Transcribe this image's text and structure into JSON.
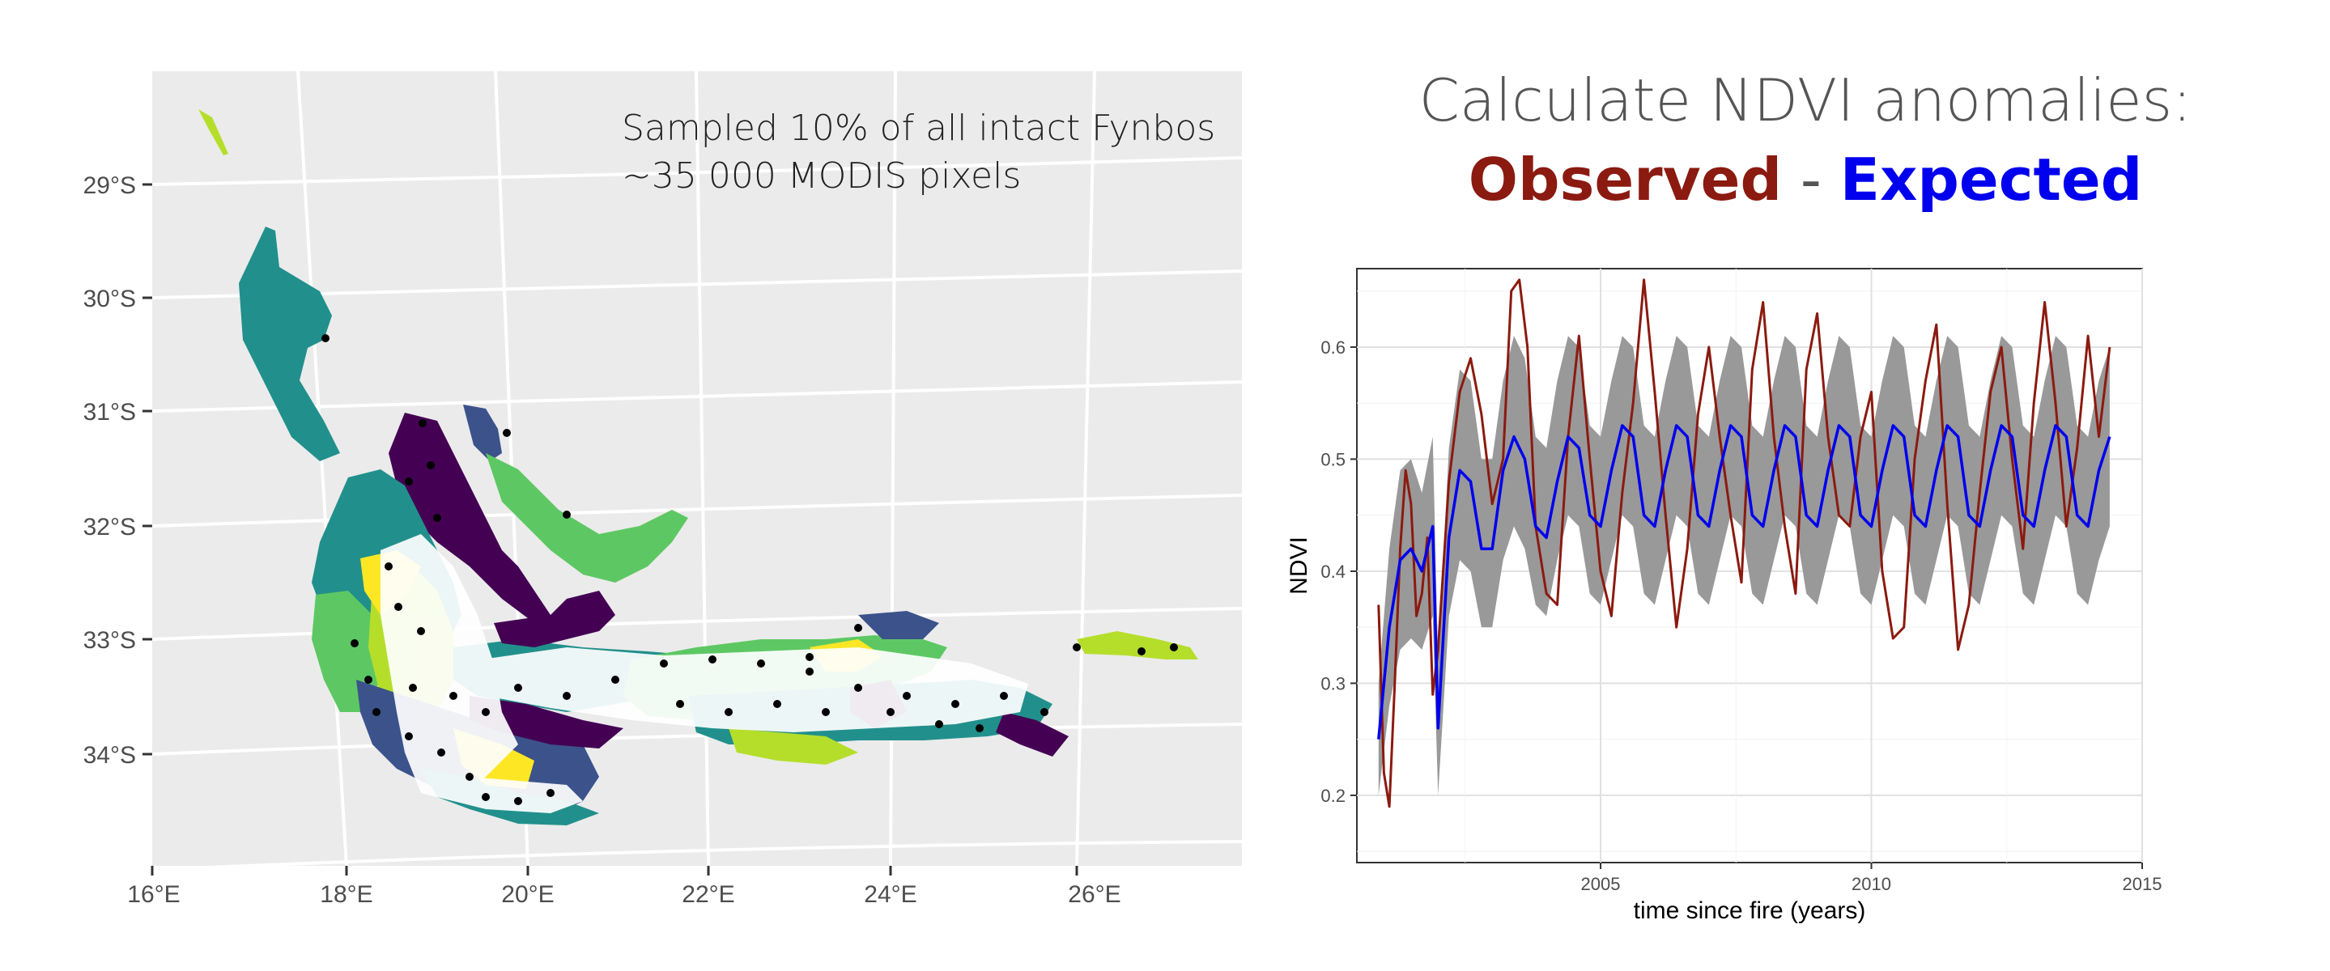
{
  "slide": {
    "title": "Calculate NDVI anomalies:",
    "observed_word": "Observed",
    "separator": " - ",
    "expected_word": "Expected",
    "observed_color": "#8b1a10",
    "expected_color": "#0000ee"
  },
  "map": {
    "annotation_line1": "Sampled 10% of all intact Fynbos",
    "annotation_line2": "~35 000 MODIS pixels",
    "lat_labels": [
      "29°S",
      "30°S",
      "31°S",
      "32°S",
      "33°S",
      "34°S"
    ],
    "lon_labels": [
      "16°E",
      "18°E",
      "20°E",
      "22°E",
      "24°E",
      "26°E"
    ],
    "panel_color": "#ebebeb",
    "palette": [
      "#440154",
      "#3b528b",
      "#21908c",
      "#5dc863",
      "#b5de2b",
      "#fde725"
    ]
  },
  "chart_data": {
    "type": "line",
    "xlabel": "time since fire (years)",
    "ylabel": "NDVI",
    "x_ticks": [
      "2005",
      "2010",
      "2015"
    ],
    "y_ticks": [
      "0.2",
      "0.3",
      "0.4",
      "0.5",
      "0.6"
    ],
    "xlim": [
      2000.5,
      2015
    ],
    "ylim": [
      0.14,
      0.67
    ],
    "grid": true,
    "series": [
      {
        "color": "#8b1a10",
        "x": [
          2000.9,
          2001.0,
          2001.1,
          2001.2,
          2001.3,
          2001.4,
          2001.5,
          2001.6,
          2001.7,
          2001.8,
          2001.9,
          2002.0,
          2002.2,
          2002.4,
          2002.6,
          2002.8,
          2003.0,
          2003.2,
          2003.35,
          2003.5,
          2003.65,
          2003.8,
          2004.0,
          2004.2,
          2004.4,
          2004.6,
          2004.8,
          2005.0,
          2005.2,
          2005.4,
          2005.6,
          2005.8,
          2006.0,
          2006.2,
          2006.4,
          2006.6,
          2006.8,
          2007.0,
          2007.2,
          2007.4,
          2007.6,
          2007.8,
          2008.0,
          2008.2,
          2008.4,
          2008.6,
          2008.8,
          2009.0,
          2009.2,
          2009.4,
          2009.6,
          2009.8,
          2010.0,
          2010.2,
          2010.4,
          2010.6,
          2010.8,
          2011.0,
          2011.2,
          2011.4,
          2011.6,
          2011.8,
          2012.0,
          2012.2,
          2012.4,
          2012.6,
          2012.8,
          2013.0,
          2013.2,
          2013.4,
          2013.6,
          2013.8,
          2014.0,
          2014.2,
          2014.4
        ],
        "y": [
          0.37,
          0.22,
          0.19,
          0.3,
          0.42,
          0.49,
          0.46,
          0.36,
          0.38,
          0.43,
          0.29,
          0.33,
          0.48,
          0.56,
          0.59,
          0.54,
          0.46,
          0.5,
          0.65,
          0.66,
          0.6,
          0.44,
          0.38,
          0.37,
          0.52,
          0.61,
          0.5,
          0.4,
          0.36,
          0.47,
          0.55,
          0.66,
          0.56,
          0.45,
          0.35,
          0.42,
          0.54,
          0.6,
          0.52,
          0.45,
          0.39,
          0.58,
          0.64,
          0.52,
          0.44,
          0.38,
          0.58,
          0.63,
          0.52,
          0.45,
          0.44,
          0.52,
          0.56,
          0.4,
          0.34,
          0.35,
          0.5,
          0.57,
          0.62,
          0.46,
          0.33,
          0.37,
          0.47,
          0.56,
          0.6,
          0.5,
          0.42,
          0.55,
          0.64,
          0.55,
          0.44,
          0.51,
          0.61,
          0.52,
          0.6
        ]
      },
      {
        "color": "#0000ee",
        "x": [
          2000.9,
          2001.1,
          2001.3,
          2001.5,
          2001.7,
          2001.9,
          2002.0,
          2002.2,
          2002.4,
          2002.6,
          2002.8,
          2003.0,
          2003.2,
          2003.4,
          2003.6,
          2003.8,
          2004.0,
          2004.2,
          2004.4,
          2004.6,
          2004.8,
          2005.0,
          2005.2,
          2005.4,
          2005.6,
          2005.8,
          2006.0,
          2006.2,
          2006.4,
          2006.6,
          2006.8,
          2007.0,
          2007.2,
          2007.4,
          2007.6,
          2007.8,
          2008.0,
          2008.2,
          2008.4,
          2008.6,
          2008.8,
          2009.0,
          2009.2,
          2009.4,
          2009.6,
          2009.8,
          2010.0,
          2010.2,
          2010.4,
          2010.6,
          2010.8,
          2011.0,
          2011.2,
          2011.4,
          2011.6,
          2011.8,
          2012.0,
          2012.2,
          2012.4,
          2012.6,
          2012.8,
          2013.0,
          2013.2,
          2013.4,
          2013.6,
          2013.8,
          2014.0,
          2014.2,
          2014.4
        ],
        "y": [
          0.25,
          0.35,
          0.41,
          0.42,
          0.4,
          0.44,
          0.26,
          0.43,
          0.49,
          0.48,
          0.42,
          0.42,
          0.49,
          0.52,
          0.5,
          0.44,
          0.43,
          0.48,
          0.52,
          0.51,
          0.45,
          0.44,
          0.49,
          0.53,
          0.52,
          0.45,
          0.44,
          0.49,
          0.53,
          0.52,
          0.45,
          0.44,
          0.49,
          0.53,
          0.52,
          0.45,
          0.44,
          0.49,
          0.53,
          0.52,
          0.45,
          0.44,
          0.49,
          0.53,
          0.52,
          0.45,
          0.44,
          0.49,
          0.53,
          0.52,
          0.45,
          0.44,
          0.49,
          0.53,
          0.52,
          0.45,
          0.44,
          0.49,
          0.53,
          0.52,
          0.45,
          0.44,
          0.49,
          0.53,
          0.52,
          0.45,
          0.44,
          0.49,
          0.52
        ]
      }
    ],
    "band": {
      "color": "#999999",
      "x": [
        2000.9,
        2001.1,
        2001.3,
        2001.5,
        2001.7,
        2001.9,
        2002.0,
        2002.2,
        2002.4,
        2002.6,
        2002.8,
        2003.0,
        2003.2,
        2003.4,
        2003.6,
        2003.8,
        2004.0,
        2004.2,
        2004.4,
        2004.6,
        2004.8,
        2005.0,
        2005.2,
        2005.4,
        2005.6,
        2005.8,
        2006.0,
        2006.2,
        2006.4,
        2006.6,
        2006.8,
        2007.0,
        2007.2,
        2007.4,
        2007.6,
        2007.8,
        2008.0,
        2008.2,
        2008.4,
        2008.6,
        2008.8,
        2009.0,
        2009.2,
        2009.4,
        2009.6,
        2009.8,
        2010.0,
        2010.2,
        2010.4,
        2010.6,
        2010.8,
        2011.0,
        2011.2,
        2011.4,
        2011.6,
        2011.8,
        2012.0,
        2012.2,
        2012.4,
        2012.6,
        2012.8,
        2013.0,
        2013.2,
        2013.4,
        2013.6,
        2013.8,
        2014.0,
        2014.2,
        2014.4
      ],
      "lower": [
        0.2,
        0.28,
        0.33,
        0.34,
        0.33,
        0.36,
        0.2,
        0.36,
        0.41,
        0.4,
        0.35,
        0.35,
        0.41,
        0.44,
        0.42,
        0.37,
        0.36,
        0.41,
        0.45,
        0.44,
        0.38,
        0.37,
        0.41,
        0.45,
        0.44,
        0.38,
        0.37,
        0.41,
        0.45,
        0.44,
        0.38,
        0.37,
        0.41,
        0.45,
        0.44,
        0.38,
        0.37,
        0.41,
        0.45,
        0.44,
        0.38,
        0.37,
        0.41,
        0.45,
        0.44,
        0.38,
        0.37,
        0.41,
        0.45,
        0.44,
        0.38,
        0.37,
        0.41,
        0.45,
        0.44,
        0.38,
        0.37,
        0.41,
        0.45,
        0.44,
        0.38,
        0.37,
        0.41,
        0.45,
        0.44,
        0.38,
        0.37,
        0.41,
        0.44
      ],
      "upper": [
        0.3,
        0.42,
        0.49,
        0.5,
        0.47,
        0.52,
        0.32,
        0.51,
        0.58,
        0.57,
        0.5,
        0.5,
        0.57,
        0.61,
        0.59,
        0.52,
        0.51,
        0.57,
        0.61,
        0.6,
        0.53,
        0.52,
        0.57,
        0.61,
        0.6,
        0.53,
        0.52,
        0.57,
        0.61,
        0.6,
        0.53,
        0.52,
        0.57,
        0.61,
        0.6,
        0.53,
        0.52,
        0.57,
        0.61,
        0.6,
        0.53,
        0.52,
        0.57,
        0.61,
        0.6,
        0.53,
        0.52,
        0.57,
        0.61,
        0.6,
        0.53,
        0.52,
        0.57,
        0.61,
        0.6,
        0.53,
        0.52,
        0.57,
        0.61,
        0.6,
        0.53,
        0.52,
        0.57,
        0.61,
        0.6,
        0.53,
        0.52,
        0.57,
        0.6
      ]
    }
  }
}
